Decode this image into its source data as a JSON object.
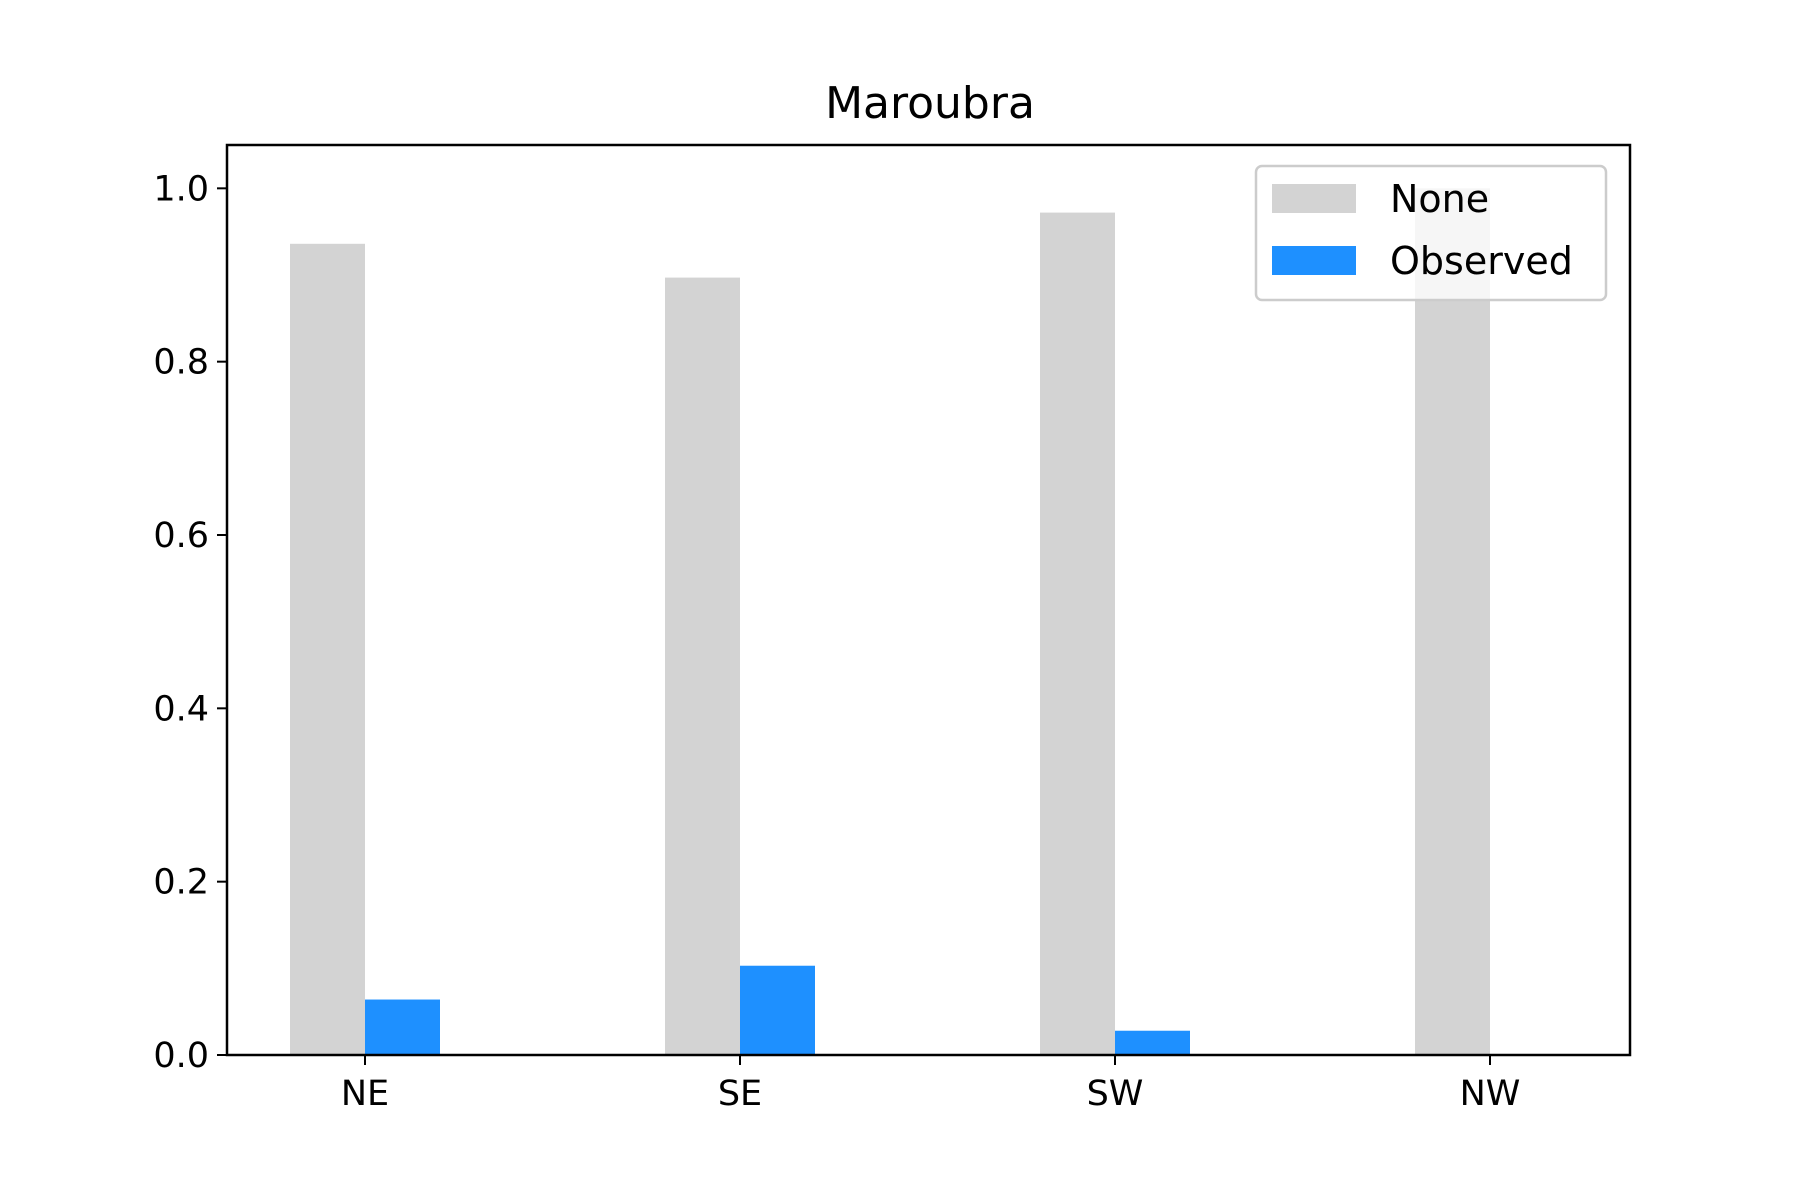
{
  "chart_data": {
    "type": "bar",
    "title": "Maroubra",
    "categories": [
      "NE",
      "SE",
      "SW",
      "NW"
    ],
    "series": [
      {
        "name": "None",
        "values": [
          0.936,
          0.897,
          0.972,
          1.0
        ],
        "color": "#d3d3d3"
      },
      {
        "name": "Observed",
        "values": [
          0.064,
          0.103,
          0.028,
          0.0
        ],
        "color": "#1e90ff"
      }
    ],
    "ylim": [
      0,
      1.05
    ],
    "yticks": [
      "0.0",
      "0.2",
      "0.4",
      "0.6",
      "0.8",
      "1.0"
    ],
    "ytick_values": [
      0,
      0.2,
      0.4,
      0.6,
      0.8,
      1.0
    ],
    "legend_position": "top-right",
    "grid": false
  }
}
